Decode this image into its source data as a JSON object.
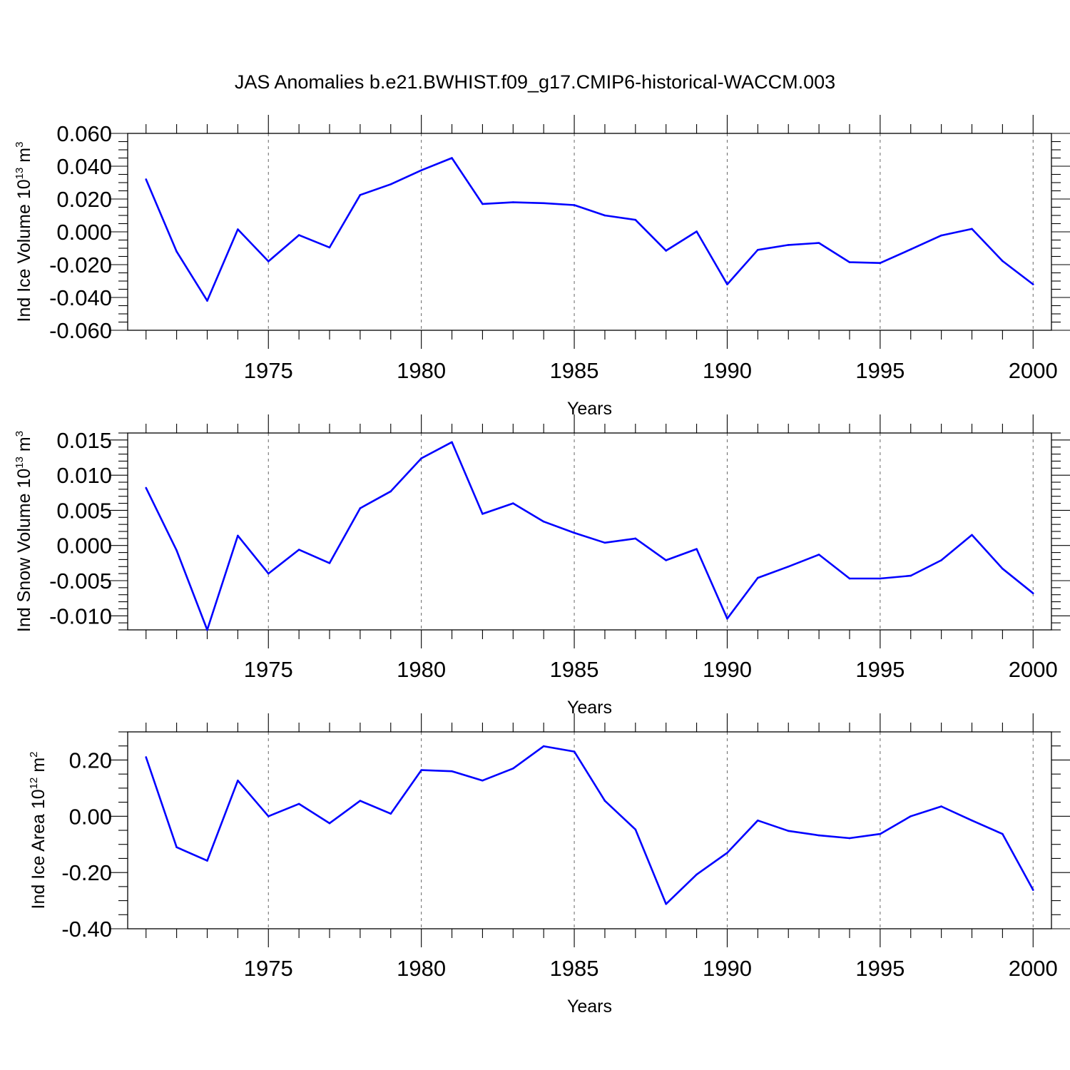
{
  "title": "JAS Anomalies b.e21.BWHIST.f09_g17.CMIP6-historical-WACCM.003",
  "line_color": "#0000ff",
  "chart_data": [
    {
      "type": "line",
      "ylabel": "Ind Ice Volume 10",
      "ylabel_exp": "13",
      "ylabel_unit": " m",
      "ylabel_unit_exp": "3",
      "xlabel": "Years",
      "xlim": [
        1970.4,
        2000.6
      ],
      "ylim": [
        -0.06,
        0.06
      ],
      "x_ticks": [
        1975,
        1980,
        1985,
        1990,
        1995,
        2000
      ],
      "x_tick_labels": [
        "1975",
        "1980",
        "1985",
        "1990",
        "1995",
        "2000"
      ],
      "y_ticks": [
        -0.06,
        -0.04,
        -0.02,
        0.0,
        0.02,
        0.04,
        0.06
      ],
      "y_tick_labels": [
        "-0.060",
        "-0.040",
        "-0.020",
        "0.000",
        "0.020",
        "0.040",
        "0.060"
      ],
      "y_minor_step": 0.005,
      "x": [
        1971,
        1972,
        1973,
        1974,
        1975,
        1976,
        1977,
        1978,
        1979,
        1980,
        1981,
        1982,
        1983,
        1984,
        1985,
        1986,
        1987,
        1988,
        1989,
        1990,
        1991,
        1992,
        1993,
        1994,
        1995,
        1996,
        1997,
        1998,
        1999,
        2000
      ],
      "values": [
        0.032,
        -0.012,
        -0.042,
        0.0015,
        -0.018,
        -0.002,
        -0.0095,
        0.0225,
        0.029,
        0.0375,
        0.045,
        0.017,
        0.018,
        0.0175,
        0.0163,
        0.01,
        0.0073,
        -0.0115,
        0.0002,
        -0.032,
        -0.011,
        -0.008,
        -0.0068,
        -0.0185,
        -0.019,
        -0.0107,
        -0.0022,
        0.0018,
        -0.0178,
        -0.032
      ]
    },
    {
      "type": "line",
      "ylabel": "Ind Snow Volume 10",
      "ylabel_exp": "13",
      "ylabel_unit": " m",
      "ylabel_unit_exp": "3",
      "xlabel": "Years",
      "xlim": [
        1970.4,
        2000.6
      ],
      "ylim": [
        -0.012,
        0.016
      ],
      "x_ticks": [
        1975,
        1980,
        1985,
        1990,
        1995,
        2000
      ],
      "x_tick_labels": [
        "1975",
        "1980",
        "1985",
        "1990",
        "1995",
        "2000"
      ],
      "y_ticks": [
        -0.01,
        -0.005,
        0.0,
        0.005,
        0.01,
        0.015
      ],
      "y_tick_labels": [
        "-0.010",
        "-0.005",
        "0.000",
        "0.005",
        "0.010",
        "0.015"
      ],
      "y_minor_step": 0.001,
      "x": [
        1971,
        1972,
        1973,
        1974,
        1975,
        1976,
        1977,
        1978,
        1979,
        1980,
        1981,
        1982,
        1983,
        1984,
        1985,
        1986,
        1987,
        1988,
        1989,
        1990,
        1991,
        1992,
        1993,
        1994,
        1995,
        1996,
        1997,
        1998,
        1999,
        2000
      ],
      "values": [
        0.0082,
        -0.0007,
        -0.012,
        0.0014,
        -0.004,
        -0.0006,
        -0.0025,
        0.0053,
        0.0077,
        0.0124,
        0.0147,
        0.0045,
        0.006,
        0.0034,
        0.0018,
        0.0004,
        0.001,
        -0.0021,
        -0.0005,
        -0.0104,
        -0.0046,
        -0.003,
        -0.0013,
        -0.0047,
        -0.0047,
        -0.0043,
        -0.0021,
        0.0015,
        -0.0033,
        -0.0068
      ]
    },
    {
      "type": "line",
      "ylabel": "Ind Ice Area 10",
      "ylabel_exp": "12",
      "ylabel_unit": " m",
      "ylabel_unit_exp": "2",
      "xlabel": "Years",
      "xlim": [
        1970.4,
        2000.6
      ],
      "ylim": [
        -0.4,
        0.3
      ],
      "x_ticks": [
        1975,
        1980,
        1985,
        1990,
        1995,
        2000
      ],
      "x_tick_labels": [
        "1975",
        "1980",
        "1985",
        "1990",
        "1995",
        "2000"
      ],
      "y_ticks": [
        -0.4,
        -0.2,
        0.0,
        0.2
      ],
      "y_tick_labels": [
        "-0.40",
        "-0.20",
        "0.00",
        "0.20"
      ],
      "y_minor_step": 0.05,
      "x": [
        1971,
        1972,
        1973,
        1974,
        1975,
        1976,
        1977,
        1978,
        1979,
        1980,
        1981,
        1982,
        1983,
        1984,
        1985,
        1986,
        1987,
        1988,
        1989,
        1990,
        1991,
        1992,
        1993,
        1994,
        1995,
        1996,
        1997,
        1998,
        1999,
        2000
      ],
      "values": [
        0.21,
        -0.11,
        -0.158,
        0.127,
        0.0,
        0.044,
        -0.025,
        0.055,
        0.009,
        0.164,
        0.16,
        0.127,
        0.17,
        0.249,
        0.23,
        0.055,
        -0.047,
        -0.312,
        -0.207,
        -0.13,
        -0.015,
        -0.052,
        -0.068,
        -0.078,
        -0.063,
        0.0,
        0.035,
        -0.015,
        -0.063,
        -0.262
      ]
    }
  ]
}
